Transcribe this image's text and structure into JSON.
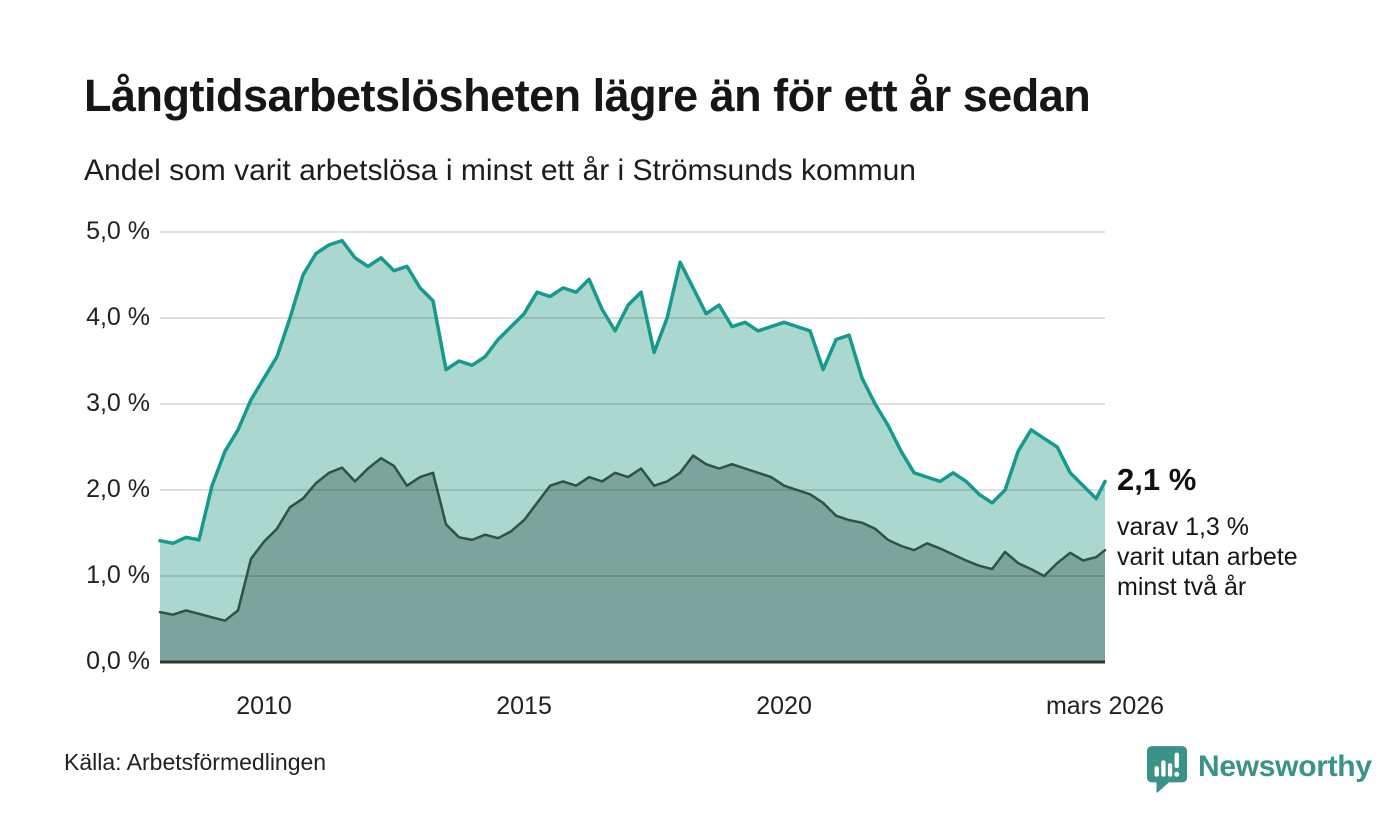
{
  "header": {
    "title": "Långtidsarbetslösheten lägre än för ett år sedan",
    "subtitle": "Andel som varit arbetslösa i minst ett år i Strömsunds kommun"
  },
  "annotation": {
    "latest_value": "2,1 %",
    "line1": "varav 1,3 %",
    "line2": "varit utan arbete",
    "line3": "minst två år"
  },
  "footer": {
    "source": "Källa: Arbetsförmedlingen",
    "brand": "Newsworthy"
  },
  "colors": {
    "accent_teal": "#169a8e",
    "light_fill": "#aad8cf",
    "dark_line": "#2d5249",
    "dark_fill": "#7ba59c",
    "gridline": "rgba(0,0,0,0.12)",
    "axis": "#333333",
    "brand_teal": "#3b9388"
  },
  "chart_data": {
    "type": "area",
    "title": "Långtidsarbetslösheten lägre än för ett år sedan",
    "subtitle": "Andel som varit arbetslösa i minst ett år i Strömsunds kommun",
    "unit": "%",
    "grid": "horizontal",
    "ylim": [
      0,
      5
    ],
    "xlim": [
      2008,
      2026.17
    ],
    "x": [
      2008.0,
      2008.25,
      2008.5,
      2008.75,
      2009.0,
      2009.25,
      2009.5,
      2009.75,
      2010.0,
      2010.25,
      2010.5,
      2010.75,
      2011.0,
      2011.25,
      2011.5,
      2011.75,
      2012.0,
      2012.25,
      2012.5,
      2012.75,
      2013.0,
      2013.25,
      2013.5,
      2013.75,
      2014.0,
      2014.25,
      2014.5,
      2014.75,
      2015.0,
      2015.25,
      2015.5,
      2015.75,
      2016.0,
      2016.25,
      2016.5,
      2016.75,
      2017.0,
      2017.25,
      2017.5,
      2017.75,
      2018.0,
      2018.25,
      2018.5,
      2018.75,
      2019.0,
      2019.25,
      2019.5,
      2019.75,
      2020.0,
      2020.25,
      2020.5,
      2020.75,
      2021.0,
      2021.25,
      2021.5,
      2021.75,
      2022.0,
      2022.25,
      2022.5,
      2022.75,
      2023.0,
      2023.25,
      2023.5,
      2023.75,
      2024.0,
      2024.25,
      2024.5,
      2024.75,
      2025.0,
      2025.25,
      2025.5,
      2025.75,
      2026.0,
      2026.17
    ],
    "series": [
      {
        "name": "Arbetslösa minst ett år",
        "color": "#169a8e",
        "fill": "#aad8cf",
        "latest_label": "2,1 %",
        "values": [
          1.41,
          1.38,
          1.45,
          1.42,
          2.05,
          2.45,
          2.7,
          3.05,
          3.3,
          3.55,
          4.0,
          4.5,
          4.75,
          4.85,
          4.9,
          4.7,
          4.6,
          4.7,
          4.55,
          4.6,
          4.35,
          4.2,
          3.4,
          3.5,
          3.45,
          3.55,
          3.75,
          3.9,
          4.05,
          4.3,
          4.25,
          4.35,
          4.3,
          4.45,
          4.1,
          3.85,
          4.15,
          4.3,
          3.6,
          4.0,
          4.65,
          4.35,
          4.05,
          4.15,
          3.9,
          3.95,
          3.85,
          3.9,
          3.95,
          3.9,
          3.85,
          3.4,
          3.75,
          3.8,
          3.3,
          3.0,
          2.75,
          2.45,
          2.2,
          2.15,
          2.1,
          2.2,
          2.1,
          1.95,
          1.85,
          2.0,
          2.45,
          2.7,
          2.6,
          2.5,
          2.2,
          2.05,
          1.9,
          2.1
        ]
      },
      {
        "name": "Varav utan arbete minst två år",
        "color": "#2d5249",
        "fill": "#7ba59c",
        "latest_label": "1,3 %",
        "values": [
          0.58,
          0.55,
          0.6,
          0.56,
          0.52,
          0.48,
          0.6,
          1.2,
          1.4,
          1.55,
          1.8,
          1.9,
          2.08,
          2.2,
          2.26,
          2.1,
          2.25,
          2.37,
          2.28,
          2.05,
          2.15,
          2.2,
          1.6,
          1.45,
          1.42,
          1.48,
          1.44,
          1.52,
          1.65,
          1.85,
          2.05,
          2.1,
          2.05,
          2.15,
          2.1,
          2.2,
          2.15,
          2.25,
          2.05,
          2.1,
          2.2,
          2.4,
          2.3,
          2.25,
          2.3,
          2.25,
          2.2,
          2.15,
          2.05,
          2.0,
          1.95,
          1.85,
          1.7,
          1.65,
          1.62,
          1.55,
          1.42,
          1.35,
          1.3,
          1.38,
          1.32,
          1.25,
          1.18,
          1.12,
          1.08,
          1.28,
          1.15,
          1.08,
          1.0,
          1.15,
          1.27,
          1.18,
          1.22,
          1.3
        ]
      }
    ],
    "y_ticks": [
      {
        "value": 0,
        "label": "0,0 %"
      },
      {
        "value": 1,
        "label": "1,0 %"
      },
      {
        "value": 2,
        "label": "2,0 %"
      },
      {
        "value": 3,
        "label": "3,0 %"
      },
      {
        "value": 4,
        "label": "4,0 %"
      },
      {
        "value": 5,
        "label": "5,0 %"
      }
    ],
    "x_ticks": [
      {
        "value": 2010,
        "label": "2010"
      },
      {
        "value": 2015,
        "label": "2015"
      },
      {
        "value": 2020,
        "label": "2020"
      },
      {
        "value": 2026.17,
        "label": "mars 2026"
      }
    ]
  }
}
